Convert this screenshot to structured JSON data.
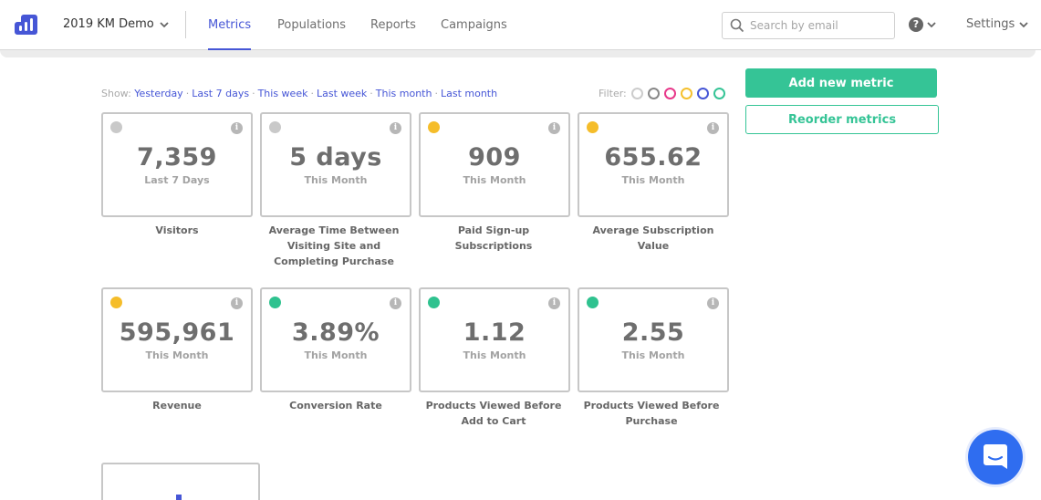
{
  "header": {
    "project_name": "2019 KM Demo",
    "tabs": [
      {
        "label": "Metrics",
        "active": true
      },
      {
        "label": "Populations",
        "active": false
      },
      {
        "label": "Reports",
        "active": false
      },
      {
        "label": "Campaigns",
        "active": false
      }
    ],
    "search_placeholder": "Search by email",
    "help_icon": "?",
    "settings_label": "Settings"
  },
  "show": {
    "label": "Show:",
    "separator": "·",
    "options": [
      "Yesterday",
      "Last 7 days",
      "This week",
      "Last week",
      "This month",
      "Last month"
    ]
  },
  "filter": {
    "label": "Filter:",
    "colors": [
      "#cccccc",
      "#888888",
      "#e8388a",
      "#f5c02e",
      "#4656d6",
      "#35c496"
    ]
  },
  "actions": {
    "add_label": "Add new metric",
    "reorder_label": "Reorder metrics"
  },
  "info_glyph": "i",
  "metrics": [
    {
      "value": "7,359",
      "period": "Last 7 Days",
      "name": "Visitors",
      "status_color": "#c9c9c9"
    },
    {
      "value": "5 days",
      "period": "This Month",
      "name": "Average Time Between Visiting Site and Completing Purchase",
      "status_color": "#c9c9c9"
    },
    {
      "value": "909",
      "period": "This Month",
      "name": "Paid Sign-up Subscriptions",
      "status_color": "#f5bd2a"
    },
    {
      "value": "655.62",
      "period": "This Month",
      "name": "Average Subscription Value",
      "status_color": "#f5bd2a"
    },
    {
      "value": "595,961",
      "period": "This Month",
      "name": "Revenue",
      "status_color": "#f5bd2a"
    },
    {
      "value": "3.89%",
      "period": "This Month",
      "name": "Conversion Rate",
      "status_color": "#2fc28f"
    },
    {
      "value": "1.12",
      "period": "This Month",
      "name": "Products Viewed Before Add to Cart",
      "status_color": "#2fc28f"
    },
    {
      "value": "2.55",
      "period": "This Month",
      "name": "Products Viewed Before Purchase",
      "status_color": "#2fc28f"
    }
  ],
  "colors": {
    "accent": "#4656d6",
    "primary_button": "#35c496",
    "chat_button": "#2f6df0"
  }
}
